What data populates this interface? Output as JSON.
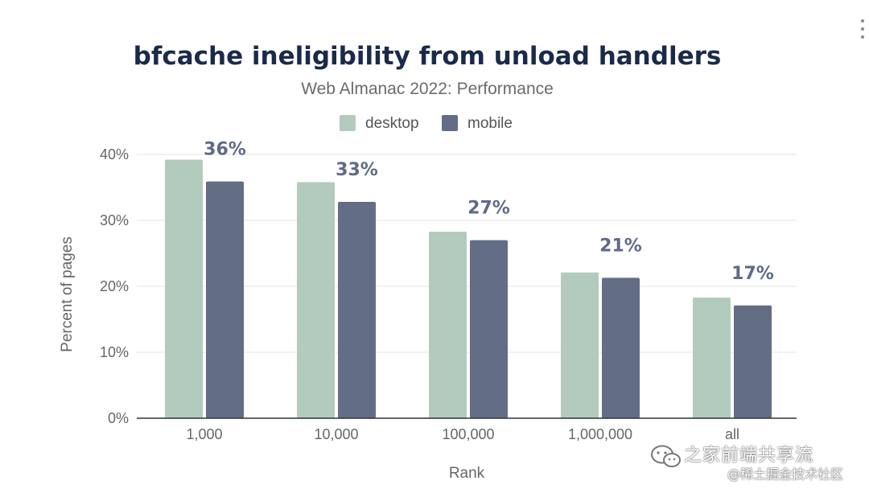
{
  "chart_data": {
    "type": "bar",
    "title": "bfcache ineligibility from unload handlers",
    "subtitle": "Web Almanac 2022: Performance",
    "xlabel": "Rank",
    "ylabel": "Percent of pages",
    "categories": [
      "1,000",
      "10,000",
      "100,000",
      "1,000,000",
      "all"
    ],
    "series": [
      {
        "name": "desktop",
        "color": "#b2cbbd",
        "values": [
          39.2,
          35.8,
          28.3,
          22.1,
          18.3
        ]
      },
      {
        "name": "mobile",
        "color": "#636d86",
        "values": [
          35.9,
          32.8,
          27.0,
          21.3,
          17.1
        ]
      }
    ],
    "data_labels": [
      "36%",
      "33%",
      "27%",
      "21%",
      "17%"
    ],
    "yticks": [
      "0%",
      "10%",
      "20%",
      "30%",
      "40%"
    ],
    "ytick_values": [
      0,
      10,
      20,
      30,
      40
    ],
    "ylim": [
      0,
      40
    ],
    "grid": true,
    "legend": "top-center"
  },
  "watermark": {
    "line1": "之家前端共享流",
    "line2": "@稀土掘金技术社区"
  },
  "icons": {
    "menu": "more-vertical-icon",
    "watermark": "wechat-icon"
  }
}
